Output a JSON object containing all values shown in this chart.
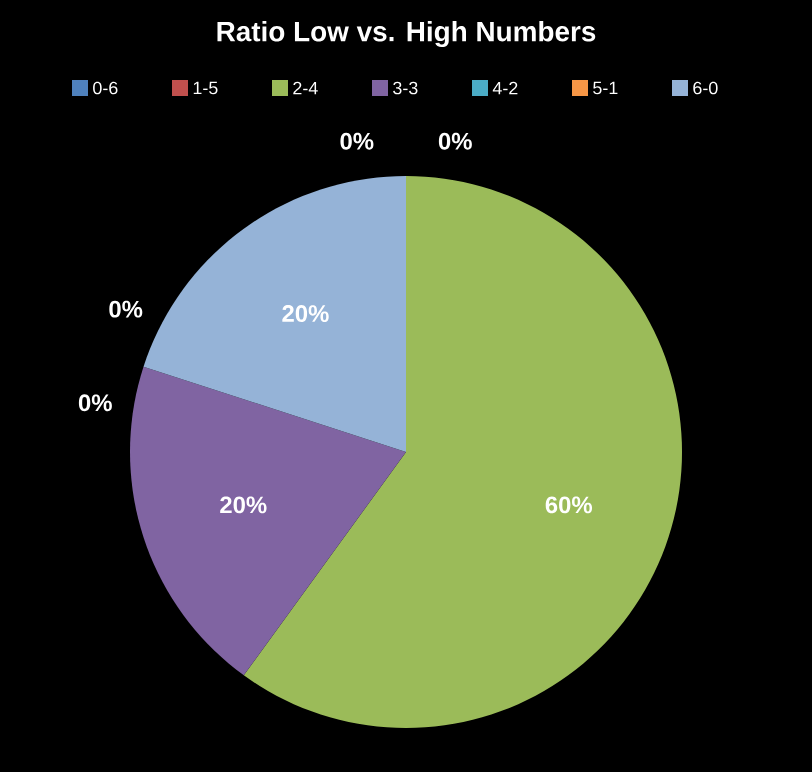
{
  "chart_data": {
    "type": "pie",
    "title": "Ratio Low vs. High Numbers",
    "categories": [
      "0-6",
      "1-5",
      "2-4",
      "3-3",
      "4-2",
      "5-1",
      "6-0"
    ],
    "values": [
      0,
      0,
      60,
      20,
      0,
      0,
      20
    ],
    "value_labels": [
      "0%",
      "0%",
      "60%",
      "20%",
      "0%",
      "0%",
      "20%"
    ],
    "colors": [
      "#4f81bd",
      "#c0504d",
      "#9bbb59",
      "#8064a2",
      "#4bacc6",
      "#f79646",
      "#95b3d7"
    ],
    "legend": "top"
  }
}
